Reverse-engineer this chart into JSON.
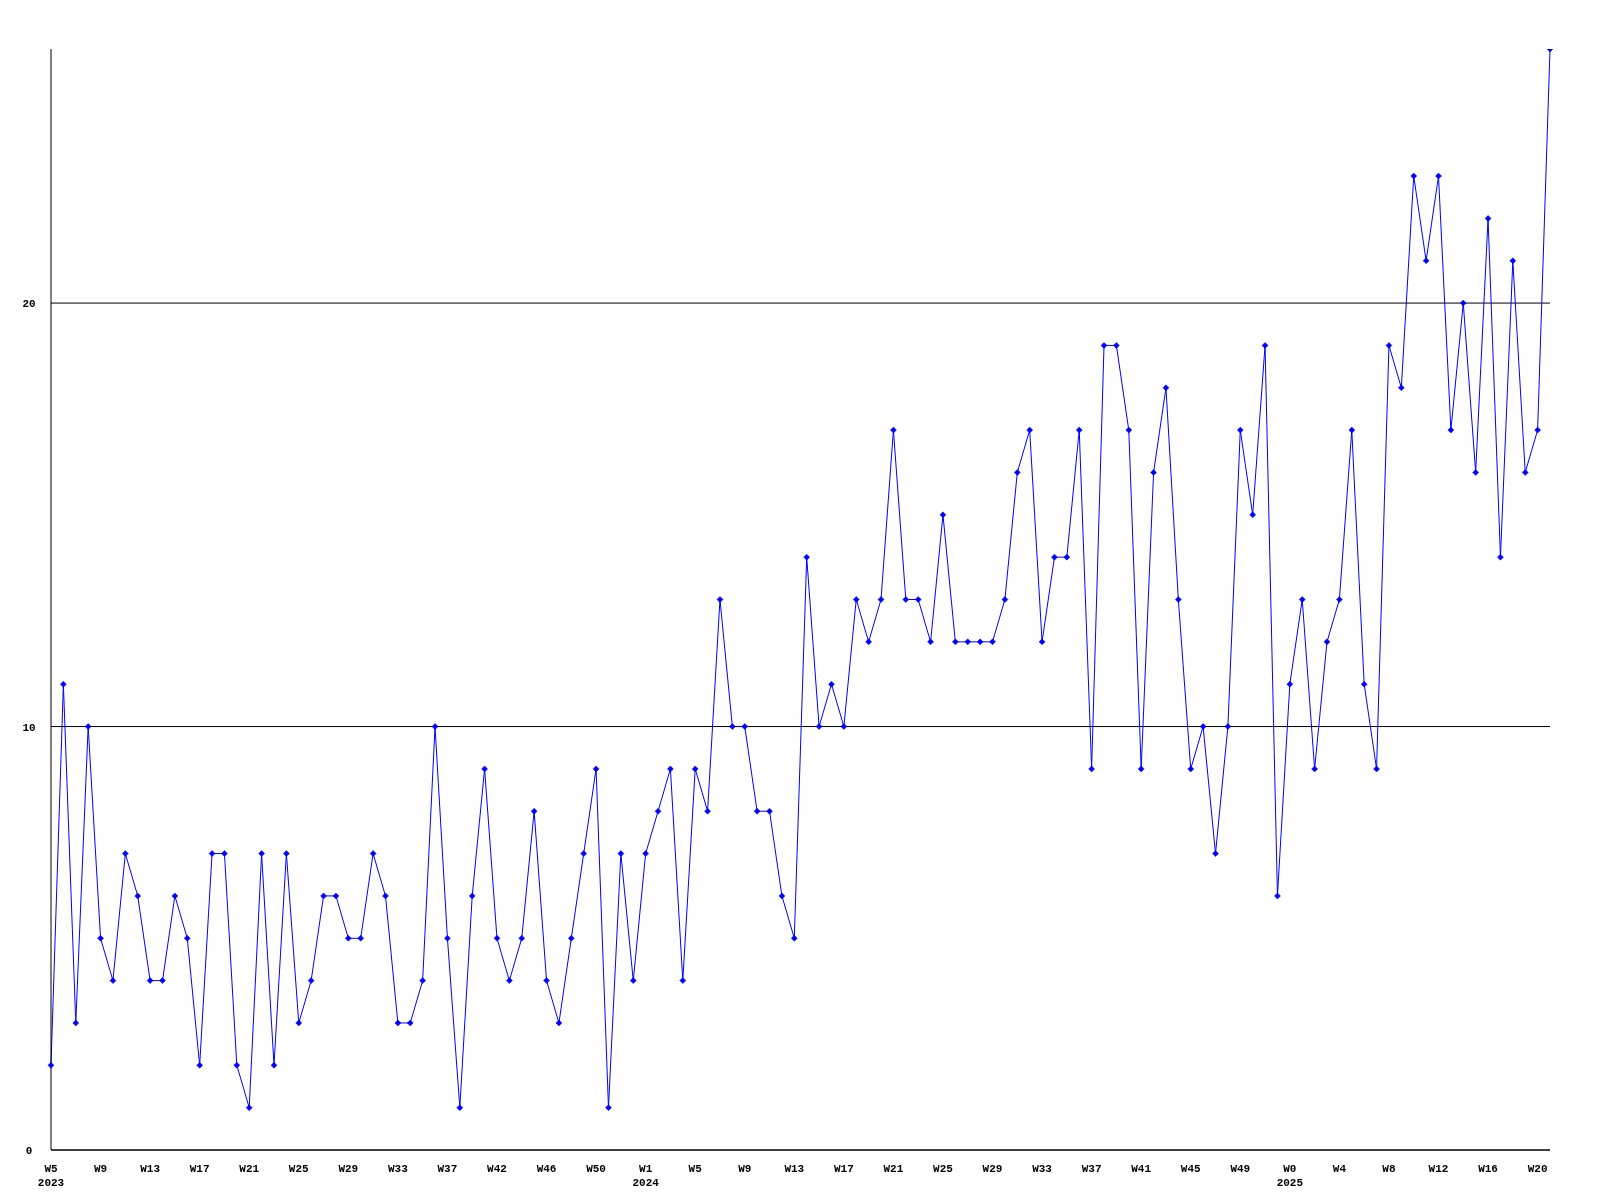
{
  "chart_data": {
    "type": "line",
    "categories": [
      "W5\n2023",
      null,
      null,
      null,
      "W9",
      null,
      null,
      null,
      "W13",
      null,
      null,
      null,
      "W17",
      null,
      null,
      null,
      "W21",
      null,
      null,
      null,
      "W25",
      null,
      null,
      null,
      "W29",
      null,
      null,
      null,
      "W33",
      null,
      null,
      null,
      "W37",
      null,
      null,
      null,
      "W42",
      null,
      null,
      null,
      "W46",
      null,
      null,
      null,
      "W50",
      null,
      null,
      null,
      "W1\n2024",
      null,
      null,
      null,
      "W5",
      null,
      null,
      null,
      "W9",
      null,
      null,
      null,
      "W13",
      null,
      null,
      null,
      "W17",
      null,
      null,
      null,
      "W21",
      null,
      null,
      null,
      "W25",
      null,
      null,
      null,
      "W29",
      null,
      null,
      null,
      "W33",
      null,
      null,
      null,
      "W37",
      null,
      null,
      null,
      "W41",
      null,
      null,
      null,
      "W45",
      null,
      null,
      null,
      "W49",
      null,
      null,
      null,
      "W0\n2025",
      null,
      null,
      null,
      "W4",
      null,
      null,
      null,
      "W8",
      null,
      null,
      null,
      "W12",
      null,
      null,
      null,
      "W16",
      null,
      null,
      null,
      "W20",
      null
    ],
    "series": [
      {
        "color": "#0000ff",
        "values": [
          2,
          11,
          3,
          10,
          5,
          4,
          7,
          6,
          4,
          4,
          6,
          5,
          2,
          7,
          7,
          2,
          1,
          7,
          2,
          7,
          3,
          4,
          6,
          6,
          5,
          5,
          7,
          6,
          3,
          3,
          4,
          10,
          5,
          1,
          6,
          9,
          5,
          4,
          5,
          8,
          4,
          3,
          5,
          7,
          9,
          1,
          7,
          4,
          7,
          8,
          9,
          4,
          9,
          8,
          13,
          10,
          10,
          8,
          8,
          6,
          5,
          14,
          10,
          11,
          10,
          13,
          12,
          13,
          17,
          13,
          13,
          12,
          15,
          12,
          12,
          12,
          12,
          13,
          16,
          17,
          12,
          14,
          14,
          17,
          9,
          19,
          19,
          17,
          9,
          16,
          18,
          13,
          9,
          10,
          7,
          10,
          17,
          15,
          19,
          6,
          11,
          13,
          9,
          12,
          13,
          17,
          11,
          9,
          19,
          18,
          23,
          21,
          23,
          17,
          20,
          16,
          22,
          14,
          21,
          16,
          17,
          26
        ]
      }
    ],
    "ylim": [
      0,
      26
    ],
    "yticks": [
      0,
      10,
      20
    ],
    "grid": "y",
    "marker": "diamond",
    "line_style": "solid"
  }
}
